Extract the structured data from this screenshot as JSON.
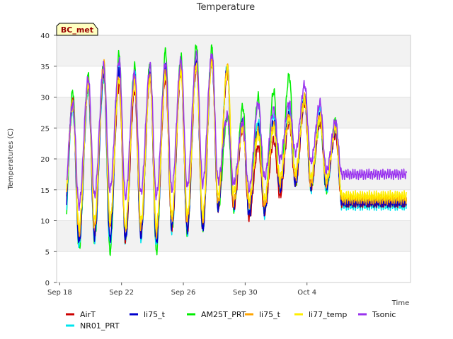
{
  "chart_data": {
    "type": "line",
    "title": "Temperature",
    "xlabel": "Time",
    "ylabel": "Temperatures (C)",
    "badge": "BC_met",
    "ylim": [
      0,
      40
    ],
    "yticks": [
      0,
      5,
      10,
      15,
      20,
      25,
      30,
      35,
      40
    ],
    "xlim_days": [
      17.8,
      40.7
    ],
    "xticks": [
      {
        "day": 18,
        "label": "Sep 18"
      },
      {
        "day": 22,
        "label": "Sep 22"
      },
      {
        "day": 26,
        "label": "Sep 26"
      },
      {
        "day": 30,
        "label": "Sep 30"
      },
      {
        "day": 34,
        "label": "Oct 4"
      }
    ],
    "grid": "horizontal bands",
    "legend_position": "bottom",
    "daily_extremes_day": [
      18,
      19,
      20,
      21,
      22,
      23,
      24,
      25,
      26,
      27,
      28,
      29,
      30,
      31,
      32,
      33,
      34,
      35,
      36,
      37,
      38,
      39,
      40
    ],
    "series": [
      {
        "name": "AirT",
        "color": "#cc0000",
        "mins": [
          9.0,
          7.0,
          8.0,
          9.0,
          7.0,
          8.0,
          7.5,
          9.0,
          8.5,
          9.0,
          12.0,
          12.0,
          10.5,
          11.5,
          14.0,
          16.0,
          15.5,
          16.0,
          13.0
        ],
        "maxs": [
          29.0,
          32.0,
          34.0,
          32.0,
          31.0,
          33.0,
          33.0,
          34.0,
          35.0,
          36.0,
          34.0,
          25.0,
          22.0,
          23.0,
          26.0,
          29.0,
          26.0,
          24.0
        ]
      },
      {
        "name": "NR01_PRT",
        "color": "#00e5ee",
        "mins": [
          7.0,
          6.0,
          7.0,
          6.5,
          6.5,
          7.0,
          6.0,
          8.5,
          8.0,
          8.5,
          12.0,
          12.0,
          11.0,
          11.0,
          15.0,
          16.0,
          15.0,
          15.0,
          12.5
        ],
        "maxs": [
          28.0,
          31.0,
          33.0,
          35.0,
          34.0,
          34.0,
          35.0,
          35.0,
          35.0,
          36.0,
          35.0,
          26.0,
          26.0,
          27.0,
          28.0,
          30.0,
          28.0,
          25.0
        ]
      },
      {
        "name": "li75_t",
        "color": "#0000cc",
        "mins": [
          8.0,
          6.5,
          7.5,
          7.0,
          7.0,
          7.5,
          6.5,
          9.0,
          8.5,
          8.5,
          12.0,
          12.5,
          11.0,
          11.5,
          15.0,
          16.0,
          15.5,
          15.5,
          13.0
        ],
        "maxs": [
          29.0,
          32.0,
          34.0,
          34.0,
          33.0,
          34.0,
          35.0,
          35.0,
          36.0,
          36.0,
          35.0,
          26.0,
          25.0,
          26.0,
          27.0,
          30.0,
          27.0,
          25.0
        ]
      },
      {
        "name": "AM25T_PRT",
        "color": "#00ee00",
        "mins": [
          4.0,
          5.5,
          7.0,
          5.0,
          7.0,
          8.0,
          5.0,
          8.5,
          8.0,
          8.5,
          12.0,
          12.0,
          11.0,
          11.5,
          15.0,
          16.0,
          15.5,
          15.0,
          13.0
        ],
        "maxs": [
          31.0,
          33.5,
          35.5,
          37.0,
          35.0,
          35.5,
          37.5,
          36.5,
          38.5,
          38.0,
          27.0,
          28.5,
          30.0,
          31.0,
          33.5,
          30.0,
          26.0,
          26.0
        ]
      },
      {
        "name": "li75_t",
        "color": "#ffa500",
        "mins": [
          9.5,
          8.0,
          9.0,
          9.5,
          8.5,
          9.0,
          8.0,
          10.0,
          10.0,
          10.0,
          13.0,
          13.0,
          12.5,
          12.5,
          16.0,
          17.0,
          16.0,
          16.0,
          13.5
        ],
        "maxs": [
          29.5,
          32.5,
          35.5,
          33.0,
          33.0,
          33.5,
          34.0,
          34.5,
          35.5,
          36.0,
          35.0,
          25.5,
          24.5,
          25.5,
          27.0,
          30.0,
          27.0,
          25.5
        ]
      },
      {
        "name": "li77_temp",
        "color": "#ffee00",
        "mins": [
          10.0,
          9.0,
          10.0,
          10.0,
          9.0,
          10.0,
          9.0,
          11.0,
          11.0,
          11.0,
          14.0,
          14.5,
          13.5,
          13.5,
          17.0,
          18.0,
          17.0,
          16.5,
          14.0
        ],
        "maxs": [
          28.5,
          32.0,
          34.5,
          33.0,
          32.5,
          33.0,
          33.5,
          34.0,
          35.0,
          35.5,
          34.5,
          25.0,
          24.0,
          25.0,
          26.5,
          29.5,
          26.5,
          25.0
        ]
      },
      {
        "name": "Tsonic",
        "color": "#9933ee",
        "mins": [
          12.0,
          12.5,
          14.0,
          15.0,
          14.0,
          14.5,
          14.0,
          15.0,
          15.5,
          16.0,
          16.5,
          16.0,
          15.0,
          17.0,
          20.0,
          21.0,
          19.5,
          18.0,
          17.5
        ],
        "maxs": [
          29.0,
          33.0,
          35.0,
          36.0,
          34.0,
          35.0,
          35.5,
          36.0,
          37.0,
          37.0,
          27.0,
          26.0,
          29.0,
          28.0,
          29.0,
          32.0,
          29.0,
          26.0
        ]
      }
    ]
  }
}
